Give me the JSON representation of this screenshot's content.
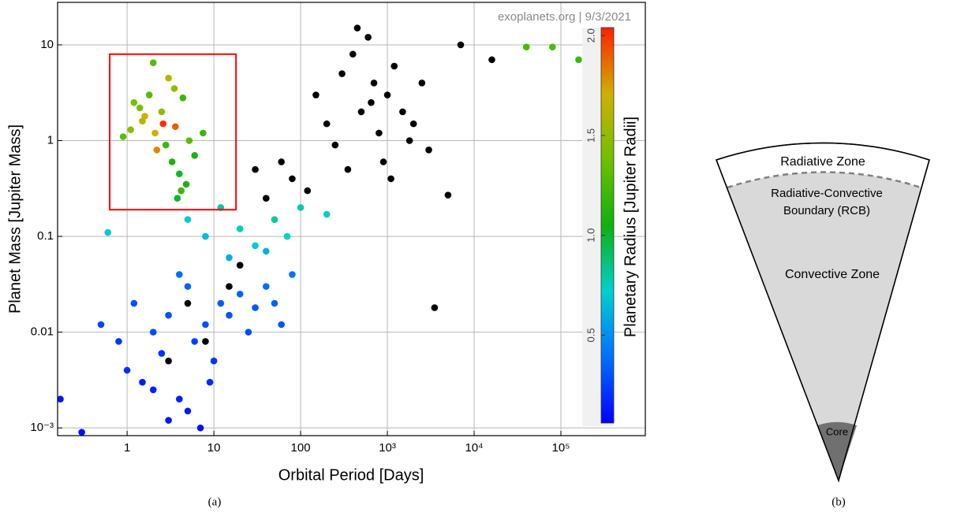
{
  "chart_data": {
    "type": "scatter",
    "xlabel": "Orbital Period [Days]",
    "ylabel": "Planet Mass [Jupiter Mass]",
    "annotation": "exoplanets.org | 9/3/2021",
    "xscale": "log",
    "yscale": "log",
    "grid": true,
    "xlim": [
      0.158,
      940000
    ],
    "ylim": [
      0.00083,
      27.8
    ],
    "xticks": [
      1,
      10,
      100,
      {
        "value": 1000,
        "label": "10³"
      },
      {
        "value": 10000,
        "label": "10⁴"
      },
      {
        "value": 100000,
        "label": "10⁵"
      }
    ],
    "yticks": [
      {
        "value": 0.001,
        "label": "10⁻³"
      },
      0.01,
      0.1,
      1,
      10
    ],
    "x": [
      1.2,
      1.5,
      1.8,
      2.1,
      2.5,
      2.8,
      3.0,
      3.3,
      3.6,
      4.0,
      4.4,
      4.8,
      5.2,
      1.1,
      1.4,
      2.2,
      2.6,
      3.5,
      4.2,
      6.0,
      0.9,
      1.6,
      3.8,
      7.5,
      2.0,
      150,
      200,
      300,
      400,
      500,
      600,
      700,
      800,
      900,
      1000,
      1200,
      1500,
      2000,
      2500,
      3000,
      350,
      450,
      650,
      1100,
      1800,
      250,
      120,
      80,
      60,
      40,
      30,
      5000,
      7000,
      16000,
      3500,
      3,
      5,
      8,
      15,
      20,
      5,
      8,
      12,
      20,
      30,
      50,
      70,
      100,
      200,
      15,
      40,
      0.6,
      0.5,
      0.8,
      1,
      1.2,
      1.5,
      2,
      2.5,
      3,
      4,
      5,
      6,
      8,
      10,
      12,
      15,
      20,
      25,
      30,
      40,
      50,
      60,
      80,
      3,
      5,
      7,
      9,
      2,
      4,
      0.3,
      0.17,
      40000,
      80000,
      160000
    ],
    "values": [
      2.5,
      1.6,
      3.0,
      1.2,
      2.0,
      0.9,
      4.5,
      0.6,
      1.4,
      0.45,
      2.8,
      0.35,
      1.0,
      1.3,
      2.2,
      0.8,
      1.5,
      3.5,
      0.3,
      0.7,
      1.1,
      1.8,
      0.25,
      1.2,
      6.5,
      3,
      1.5,
      5,
      8,
      2,
      12,
      4,
      1.2,
      0.6,
      3,
      6,
      2,
      1.5,
      4,
      0.8,
      0.5,
      15,
      2.5,
      0.4,
      1,
      0.9,
      0.3,
      0.4,
      0.6,
      0.25,
      0.5,
      0.27,
      10,
      7,
      0.018,
      0.005,
      0.02,
      0.008,
      0.03,
      0.05,
      0.15,
      0.1,
      0.2,
      0.12,
      0.08,
      0.15,
      0.1,
      0.2,
      0.17,
      0.06,
      0.07,
      0.11,
      0.012,
      0.008,
      0.004,
      0.02,
      0.003,
      0.01,
      0.006,
      0.015,
      0.002,
      0.03,
      0.008,
      0.012,
      0.005,
      0.02,
      0.015,
      0.025,
      0.01,
      0.018,
      0.03,
      0.02,
      0.012,
      0.04,
      0.0012,
      0.0015,
      0.001,
      0.003,
      0.0025,
      0.04,
      0.0009,
      0.002,
      9.5,
      9.5,
      7
    ],
    "radius": [
      1.4,
      1.6,
      1.3,
      1.7,
      1.5,
      1.2,
      1.6,
      1.1,
      1.9,
      1.0,
      1.2,
      1.1,
      1.3,
      1.5,
      1.4,
      1.8,
      2.0,
      1.5,
      1.2,
      1.1,
      1.3,
      1.7,
      1.0,
      1.2,
      1.3,
      null,
      null,
      null,
      null,
      null,
      null,
      null,
      null,
      null,
      null,
      null,
      null,
      null,
      null,
      null,
      null,
      null,
      null,
      null,
      null,
      null,
      null,
      null,
      null,
      null,
      null,
      null,
      null,
      null,
      null,
      null,
      null,
      null,
      null,
      null,
      0.7,
      0.65,
      0.8,
      0.75,
      0.7,
      0.8,
      0.72,
      0.78,
      0.75,
      0.6,
      0.62,
      0.7,
      0.25,
      0.22,
      0.2,
      0.3,
      0.15,
      0.28,
      0.2,
      0.3,
      0.15,
      0.35,
      0.25,
      0.3,
      0.22,
      0.33,
      0.3,
      0.35,
      0.28,
      0.32,
      0.38,
      0.35,
      0.3,
      0.4,
      0.12,
      0.13,
      0.1,
      0.18,
      0.15,
      0.38,
      0.1,
      0.12,
      1.25,
      1.25,
      1.2
    ],
    "missing_color": "#000000",
    "colorbar": {
      "label": "Planetary Radius [Jupiter Radii]",
      "clim": [
        0.06,
        2.04
      ],
      "cticks": [
        0.5,
        {
          "value": 1,
          "label": "1.0"
        },
        1.5,
        {
          "value": 2,
          "label": "2.0"
        }
      ],
      "colormap": [
        "#0000ff",
        "#0070ff",
        "#00d0d0",
        "#10b010",
        "#70c000",
        "#d0b000",
        "#ff2000"
      ]
    },
    "highlight_box": {
      "x": [
        0.63,
        18
      ],
      "y": [
        0.19,
        8
      ],
      "color": "#ff0000"
    }
  },
  "diagram": {
    "radiative_zone": "Radiative Zone",
    "boundary": [
      "Radiative-Convective",
      "Boundary (RCB)"
    ],
    "convective_zone": "Convective Zone",
    "core": "Core"
  },
  "captions": {
    "a": "(a)",
    "b": "(b)"
  }
}
